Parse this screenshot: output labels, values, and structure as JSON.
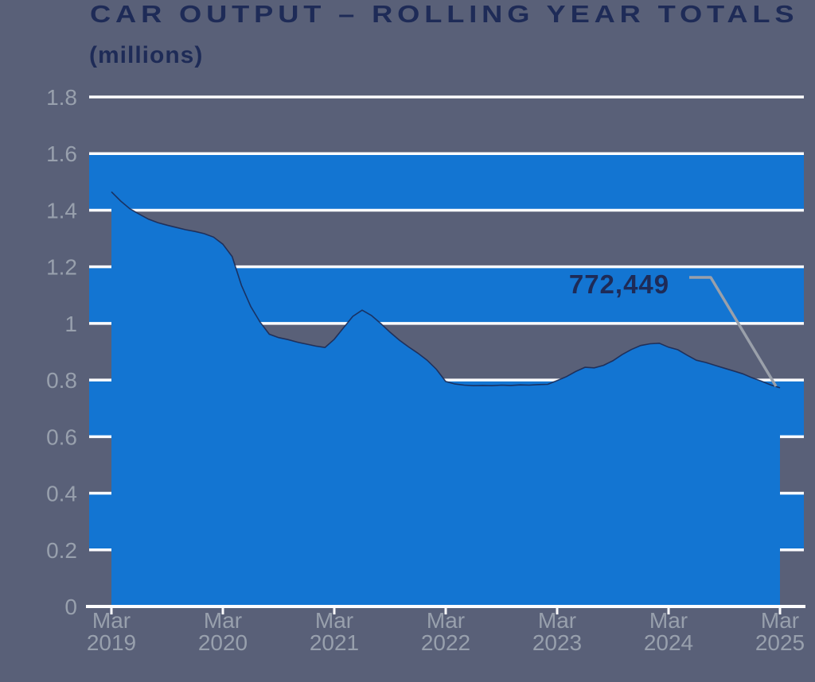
{
  "header": {
    "title": "CAR OUTPUT – ROLLING YEAR TOTALS",
    "subtitle": "(millions)"
  },
  "annotation": {
    "final_value_label": "772,449"
  },
  "chart_data": {
    "type": "area",
    "title": "CAR OUTPUT – ROLLING YEAR TOTALS",
    "unit_label": "(millions)",
    "frequency": "monthly",
    "x_start": "Mar 2019",
    "x_end": "Mar 2025",
    "ylim": [
      0,
      1.8
    ],
    "grid": "horizontal-white-lines",
    "background_stripes": [
      [
        0.2,
        0.4
      ],
      [
        0.6,
        0.8
      ],
      [
        1.0,
        1.2
      ],
      [
        1.4,
        1.6
      ]
    ],
    "y_ticks": [
      {
        "label": "1.8",
        "value": 1.8
      },
      {
        "label": "1.6",
        "value": 1.6
      },
      {
        "label": "1.4",
        "value": 1.4
      },
      {
        "label": "1.2",
        "value": 1.2
      },
      {
        "label": "1",
        "value": 1.0
      },
      {
        "label": "0.8",
        "value": 0.8
      },
      {
        "label": "0.6",
        "value": 0.6
      },
      {
        "label": "0.4",
        "value": 0.4
      },
      {
        "label": "0.2",
        "value": 0.2
      },
      {
        "label": "0",
        "value": 0.0
      }
    ],
    "x_ticks": [
      {
        "line1": "Mar",
        "line2": "2019"
      },
      {
        "line1": "Mar",
        "line2": "2020"
      },
      {
        "line1": "Mar",
        "line2": "2021"
      },
      {
        "line1": "Mar",
        "line2": "2022"
      },
      {
        "line1": "Mar",
        "line2": "2023"
      },
      {
        "line1": "Mar",
        "line2": "2024"
      },
      {
        "line1": "Mar",
        "line2": "2025"
      }
    ],
    "values": [
      1.465,
      1.432,
      1.405,
      1.386,
      1.368,
      1.356,
      1.347,
      1.339,
      1.331,
      1.325,
      1.317,
      1.305,
      1.28,
      1.236,
      1.135,
      1.06,
      1.005,
      0.962,
      0.95,
      0.943,
      0.934,
      0.927,
      0.92,
      0.915,
      0.944,
      0.985,
      1.025,
      1.047,
      1.028,
      1.0,
      0.969,
      0.941,
      0.917,
      0.895,
      0.87,
      0.838,
      0.795,
      0.786,
      0.782,
      0.78,
      0.781,
      0.78,
      0.782,
      0.781,
      0.783,
      0.782,
      0.784,
      0.785,
      0.798,
      0.812,
      0.83,
      0.845,
      0.843,
      0.852,
      0.868,
      0.89,
      0.908,
      0.922,
      0.928,
      0.93,
      0.916,
      0.907,
      0.888,
      0.87,
      0.862,
      0.852,
      0.842,
      0.832,
      0.822,
      0.808,
      0.796,
      0.783,
      0.7724
    ],
    "final_value": 772449,
    "final_value_label": "772,449",
    "colors": {
      "background": "#596078",
      "area_blue": "#1375d2",
      "title_navy": "#1e2b57",
      "curve_stroke_navy": "#1b2750",
      "axis_label_gray": "#98a0ad",
      "gridline_white": "#fdfdfe",
      "leader_gray": "#9aa0aa"
    }
  }
}
